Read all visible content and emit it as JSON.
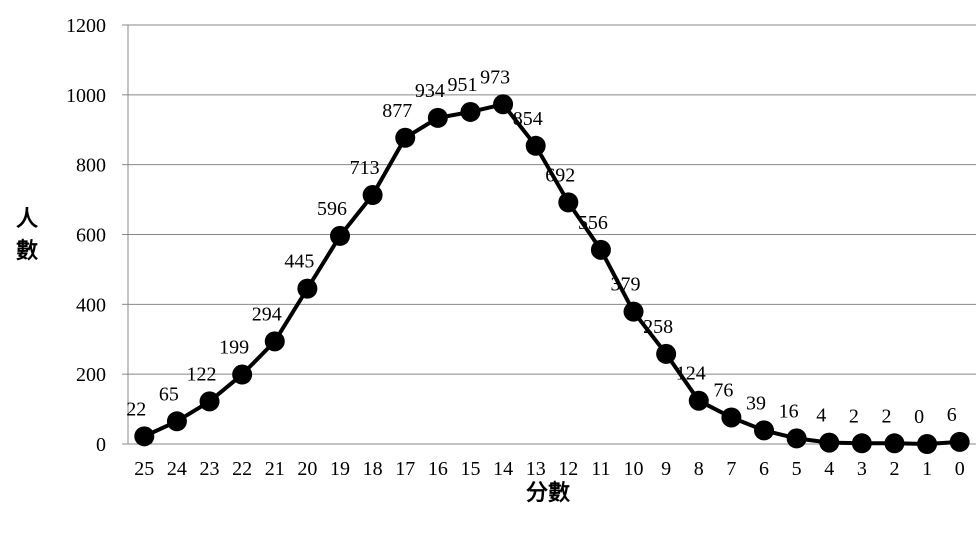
{
  "chart_data": {
    "type": "line",
    "title": "",
    "xlabel": "分數",
    "ylabel": "人數",
    "categories": [
      "25",
      "24",
      "23",
      "22",
      "21",
      "20",
      "19",
      "18",
      "17",
      "16",
      "15",
      "14",
      "13",
      "12",
      "11",
      "10",
      "9",
      "8",
      "7",
      "6",
      "5",
      "4",
      "3",
      "2",
      "1",
      "0"
    ],
    "series": [
      {
        "values": [
          22,
          65,
          122,
          199,
          294,
          445,
          596,
          713,
          877,
          934,
          951,
          973,
          854,
          692,
          556,
          379,
          258,
          124,
          76,
          39,
          16,
          4,
          2,
          2,
          0,
          6
        ]
      }
    ],
    "ylim": [
      0,
      1200
    ],
    "yticks": [
      0,
      200,
      400,
      600,
      800,
      1000,
      1200
    ],
    "grid": true,
    "legend": "none",
    "colors": {
      "line": "#000000",
      "marker": "#000000",
      "grid": "#888888",
      "axis": "#888888"
    }
  }
}
